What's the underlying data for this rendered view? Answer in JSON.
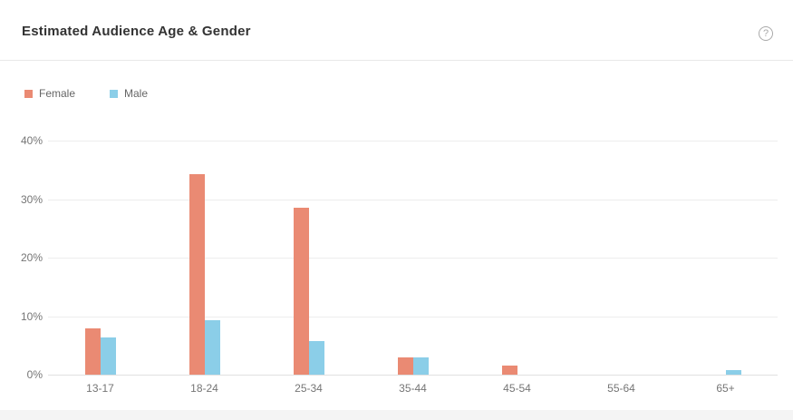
{
  "header": {
    "title": "Estimated Audience Age & Gender",
    "help_icon": "question-mark-circle"
  },
  "chart_data": {
    "type": "bar",
    "title": "Estimated Audience Age & Gender",
    "categories": [
      "13-17",
      "18-24",
      "25-34",
      "35-44",
      "45-54",
      "55-64",
      "65+"
    ],
    "series": [
      {
        "name": "Female",
        "color": "#ea8a73",
        "values": [
          7.9,
          34.3,
          28.5,
          3.0,
          1.6,
          0,
          0
        ]
      },
      {
        "name": "Male",
        "color": "#8bcee8",
        "values": [
          6.4,
          9.3,
          5.8,
          2.9,
          0,
          0,
          0.8
        ]
      }
    ],
    "xlabel": "",
    "ylabel": "",
    "ylim": [
      0,
      40
    ],
    "yticks": [
      0,
      10,
      20,
      30,
      40
    ],
    "ytick_labels": [
      "0%",
      "10%",
      "20%",
      "30%",
      "40%"
    ],
    "grid": true,
    "legend_position": "top-left"
  },
  "colors": {
    "card_background": "#ffffff",
    "page_background": "#f4f4f4",
    "title_text": "#333333",
    "axis_text": "#757575",
    "legend_text": "#666666",
    "gridline": "#ededed",
    "baseline": "#e0e0e0",
    "divider": "#e9e9e9"
  }
}
